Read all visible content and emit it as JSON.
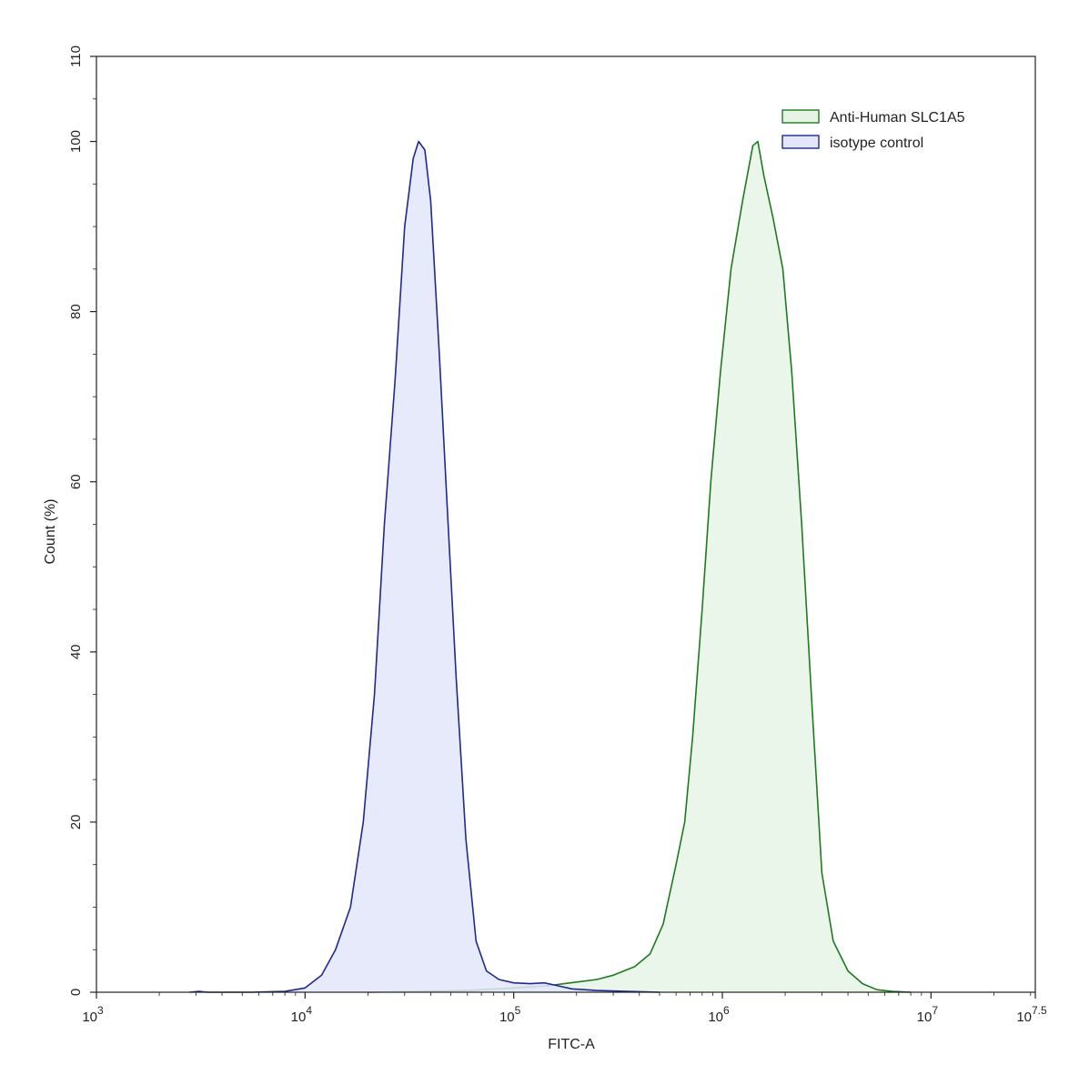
{
  "chart_data": {
    "type": "area",
    "xlabel": "FITC-A",
    "ylabel": "Count  (%)",
    "xscale": "log",
    "xlim": [
      1000,
      31622776.6
    ],
    "ylim": [
      0,
      110
    ],
    "x_ticks": [
      {
        "value": 1000,
        "base": "10",
        "exp": "3"
      },
      {
        "value": 10000,
        "base": "10",
        "exp": "4"
      },
      {
        "value": 100000,
        "base": "10",
        "exp": "5"
      },
      {
        "value": 1000000,
        "base": "10",
        "exp": "6"
      },
      {
        "value": 10000000,
        "base": "10",
        "exp": "7"
      },
      {
        "value": 31622776.6,
        "base": "10",
        "exp": "7.5"
      }
    ],
    "y_ticks": [
      "0",
      "20",
      "40",
      "60",
      "80",
      "100",
      "110"
    ],
    "grid": false,
    "legend_position": "top-right",
    "series": [
      {
        "name": "Anti-Human SLC1A5",
        "stroke": "#1f7a1f",
        "fill": "#e6f4e6",
        "points": [
          [
            20000,
            0
          ],
          [
            60000,
            0.2
          ],
          [
            100000,
            0.5
          ],
          [
            150000,
            0.8
          ],
          [
            200000,
            1.2
          ],
          [
            250000,
            1.5
          ],
          [
            300000,
            2.0
          ],
          [
            380000,
            3.0
          ],
          [
            450000,
            4.5
          ],
          [
            520000,
            8
          ],
          [
            600000,
            15
          ],
          [
            660000,
            20
          ],
          [
            720000,
            30
          ],
          [
            800000,
            45
          ],
          [
            880000,
            60
          ],
          [
            980000,
            73
          ],
          [
            1100000,
            85
          ],
          [
            1250000,
            93
          ],
          [
            1400000,
            99.5
          ],
          [
            1480000,
            100
          ],
          [
            1580000,
            96
          ],
          [
            1750000,
            91
          ],
          [
            1950000,
            85
          ],
          [
            2150000,
            73
          ],
          [
            2400000,
            55
          ],
          [
            2700000,
            33
          ],
          [
            3000000,
            14
          ],
          [
            3400000,
            6
          ],
          [
            4000000,
            2.5
          ],
          [
            4700000,
            1
          ],
          [
            5500000,
            0.3
          ],
          [
            6500000,
            0.1
          ],
          [
            8000000,
            0
          ]
        ]
      },
      {
        "name": "isotype control",
        "stroke": "#1f2a8c",
        "fill": "#e3e6fa",
        "points": [
          [
            2800,
            0
          ],
          [
            3100,
            0.1
          ],
          [
            3400,
            0
          ],
          [
            5500,
            0
          ],
          [
            8000,
            0.1
          ],
          [
            10000,
            0.5
          ],
          [
            12000,
            2
          ],
          [
            14000,
            5
          ],
          [
            16500,
            10
          ],
          [
            19000,
            20
          ],
          [
            21500,
            35
          ],
          [
            24000,
            55
          ],
          [
            27000,
            72
          ],
          [
            30000,
            90
          ],
          [
            33000,
            98
          ],
          [
            35000,
            100
          ],
          [
            37500,
            99
          ],
          [
            40000,
            93
          ],
          [
            44000,
            75
          ],
          [
            48000,
            57
          ],
          [
            53000,
            37
          ],
          [
            59000,
            18
          ],
          [
            66000,
            6
          ],
          [
            74000,
            2.5
          ],
          [
            85000,
            1.5
          ],
          [
            100000,
            1.1
          ],
          [
            120000,
            1.0
          ],
          [
            140000,
            1.1
          ],
          [
            160000,
            0.8
          ],
          [
            190000,
            0.4
          ],
          [
            250000,
            0.2
          ],
          [
            350000,
            0.1
          ],
          [
            500000,
            0
          ]
        ]
      }
    ]
  }
}
